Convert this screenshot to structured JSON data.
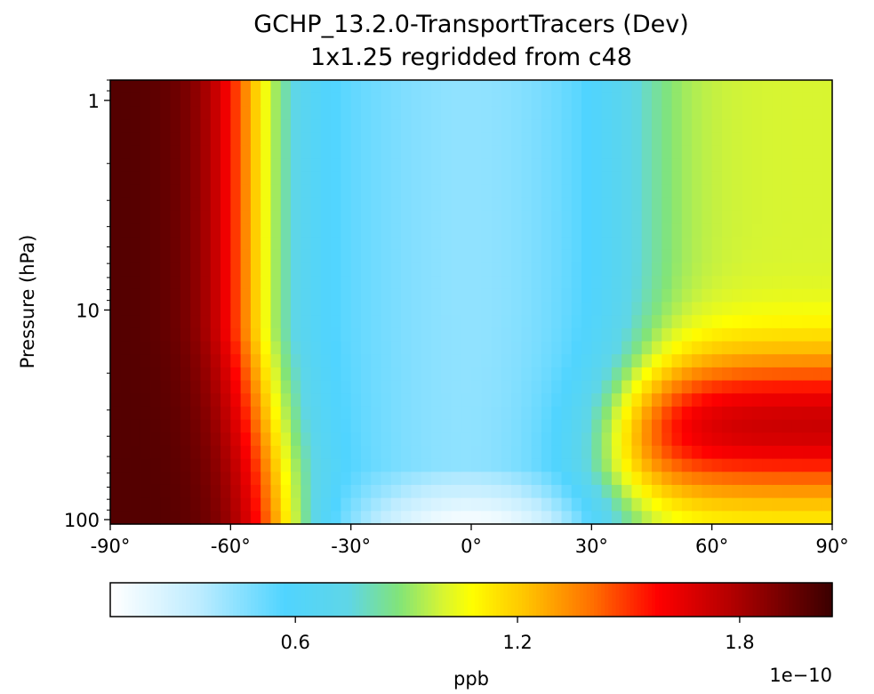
{
  "chart_data": {
    "type": "heatmap",
    "title": "GCHP_13.2.0-TransportTracers (Dev)",
    "subtitle": "1x1.25 regridded from c48",
    "xlabel": "",
    "ylabel": "Pressure (hPa)",
    "x_ticks": [
      {
        "value": -90,
        "label": "-90°"
      },
      {
        "value": -60,
        "label": "-60°"
      },
      {
        "value": -30,
        "label": "-30°"
      },
      {
        "value": 0,
        "label": "0°"
      },
      {
        "value": 30,
        "label": "30°"
      },
      {
        "value": 60,
        "label": "60°"
      },
      {
        "value": 90,
        "label": "90°"
      }
    ],
    "y_ticks": [
      {
        "value": 1,
        "label": "1"
      },
      {
        "value": 10,
        "label": "10"
      },
      {
        "value": 100,
        "label": "100"
      }
    ],
    "xlim": [
      -90,
      90
    ],
    "ylim_pressure_hPa": [
      105,
      0.8
    ],
    "y_scale": "log",
    "y_inverted": true,
    "colormap": "WhGrYlRd",
    "colorbar": {
      "label": "ppb",
      "multiplier": "1e−10",
      "ticks": [
        {
          "value": 0.6,
          "label": "0.6"
        },
        {
          "value": 1.2,
          "label": "1.2"
        },
        {
          "value": 1.8,
          "label": "1.8"
        }
      ],
      "range": [
        0.1,
        2.05
      ],
      "orientation": "horizontal",
      "placement": "bottom"
    },
    "grid": false
  }
}
